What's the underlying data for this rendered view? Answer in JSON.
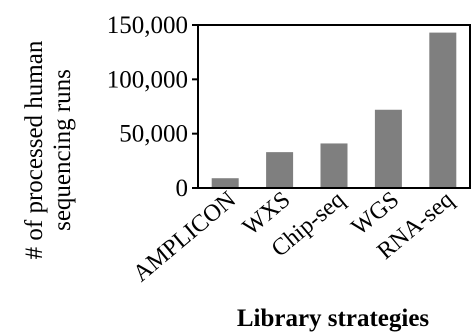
{
  "chart_data": {
    "type": "bar",
    "title": "",
    "xlabel": "Library strategies",
    "ylabel_lines": [
      "# of processed human",
      "sequencing runs"
    ],
    "categories": [
      "AMPLICON",
      "WXS",
      "Chip-seq",
      "WGS",
      "RNA-seq"
    ],
    "values": [
      9000,
      33000,
      41000,
      72000,
      143000
    ],
    "ylim": [
      0,
      150000
    ],
    "yticks": [
      0,
      50000,
      100000,
      150000
    ],
    "ytick_labels": [
      "0",
      "50,000",
      "100,000",
      "150,000"
    ],
    "grid": false,
    "bar_color": "#7f7f7f"
  }
}
